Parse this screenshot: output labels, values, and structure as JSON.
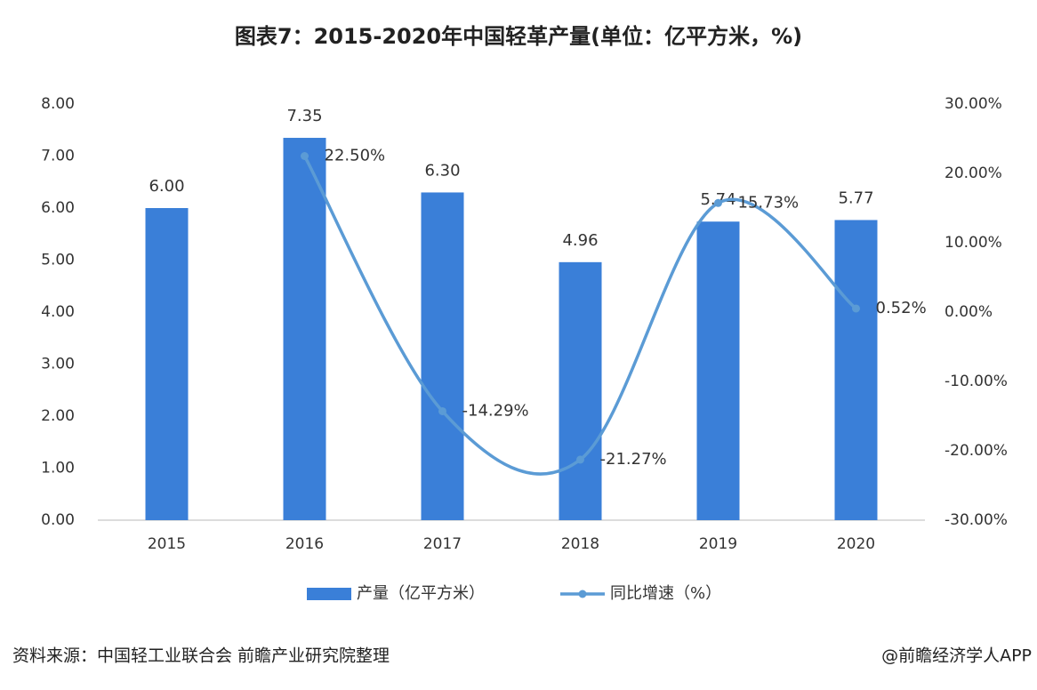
{
  "chart_data": {
    "type": "bar",
    "title": "图表7：2015-2020年中国轻革产量(单位：亿平方米，%)",
    "categories": [
      "2015",
      "2016",
      "2017",
      "2018",
      "2019",
      "2020"
    ],
    "series": [
      {
        "name": "产量（亿平方米）",
        "color": "#3a7fd8",
        "values": [
          6.0,
          7.35,
          6.3,
          4.96,
          5.74,
          5.77
        ],
        "value_labels": [
          "6.00",
          "7.35",
          "6.30",
          "4.96",
          "5.74",
          "5.77"
        ]
      },
      {
        "name": "同比增速（%）",
        "type": "line",
        "axis": "y2",
        "color": "#5b9bd5",
        "values": [
          null,
          22.5,
          -14.29,
          -21.27,
          15.73,
          0.52
        ],
        "value_labels": [
          null,
          "22.50%",
          "-14.29%",
          "-21.27%",
          "15.73%",
          "0.52%"
        ]
      }
    ],
    "ylim": [
      0,
      8
    ],
    "yticks": [
      {
        "value": 0,
        "label": "0.00"
      },
      {
        "value": 1,
        "label": "1.00"
      },
      {
        "value": 2,
        "label": "2.00"
      },
      {
        "value": 3,
        "label": "3.00"
      },
      {
        "value": 4,
        "label": "4.00"
      },
      {
        "value": 5,
        "label": "5.00"
      },
      {
        "value": 6,
        "label": "6.00"
      },
      {
        "value": 7,
        "label": "7.00"
      },
      {
        "value": 8,
        "label": "8.00"
      }
    ],
    "y2lim": [
      -30,
      30
    ],
    "y2ticks": [
      {
        "value": -30,
        "label": "-30.00%"
      },
      {
        "value": -20,
        "label": "-20.00%"
      },
      {
        "value": -10,
        "label": "-10.00%"
      },
      {
        "value": 0,
        "label": "0.00%"
      },
      {
        "value": 10,
        "label": "10.00%"
      },
      {
        "value": 20,
        "label": "20.00%"
      },
      {
        "value": 30,
        "label": "30.00%"
      }
    ],
    "grid": false,
    "legend": "bottom",
    "source": "资料来源：中国轻工业联合会 前瞻产业研究院整理",
    "credit": "@前瞻经济学人APP"
  }
}
